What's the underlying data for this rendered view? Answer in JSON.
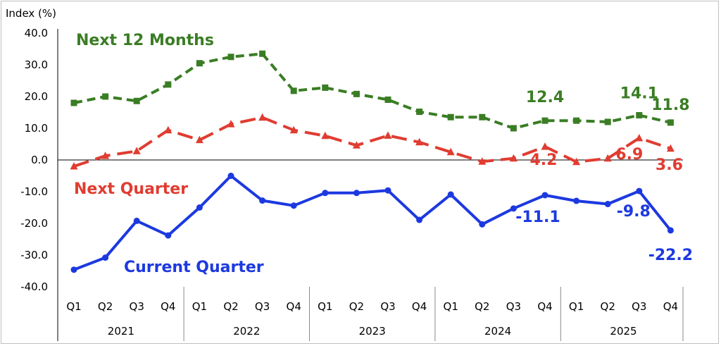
{
  "chart_data": {
    "type": "line",
    "ylabel": "Index (%)",
    "ylim": [
      -40,
      40
    ],
    "yticks": [
      "40.0",
      "30.0",
      "20.0",
      "10.0",
      "0.0",
      "-10.0",
      "-20.0",
      "-30.0",
      "-40.0"
    ],
    "quarters": [
      "Q1",
      "Q2",
      "Q3",
      "Q4",
      "Q1",
      "Q2",
      "Q3",
      "Q4",
      "Q1",
      "Q2",
      "Q3",
      "Q4",
      "Q1",
      "Q2",
      "Q3",
      "Q4",
      "Q1",
      "Q2",
      "Q3",
      "Q4"
    ],
    "years": [
      "2021",
      "2022",
      "2023",
      "2024",
      "2025"
    ],
    "grid": false,
    "series": [
      {
        "name": "Next 12 Months",
        "color": "#3a7d24",
        "style": "dashed",
        "marker": "square",
        "values": [
          18.0,
          20.0,
          18.6,
          23.8,
          30.5,
          32.5,
          33.5,
          21.8,
          22.8,
          20.8,
          19.0,
          15.2,
          13.5,
          13.5,
          10.0,
          12.4,
          12.4,
          12.0,
          14.1,
          11.8
        ],
        "labels": [
          {
            "index": 15,
            "text": "12.4"
          },
          {
            "index": 18,
            "text": "14.1"
          },
          {
            "index": 19,
            "text": "11.8"
          }
        ]
      },
      {
        "name": "Next Quarter",
        "color": "#e03c31",
        "style": "dashed",
        "marker": "triangle",
        "values": [
          -2.0,
          1.3,
          2.8,
          9.4,
          6.3,
          11.3,
          13.4,
          9.4,
          7.6,
          4.6,
          7.7,
          5.6,
          2.5,
          -0.5,
          0.5,
          4.2,
          -0.6,
          0.5,
          6.9,
          3.6
        ],
        "labels": [
          {
            "index": 15,
            "text": "4.2"
          },
          {
            "index": 18,
            "text": "6.9"
          },
          {
            "index": 19,
            "text": "3.6"
          }
        ]
      },
      {
        "name": "Current Quarter",
        "color": "#1c39e0",
        "style": "solid",
        "marker": "circle",
        "values": [
          -34.6,
          -30.8,
          -19.2,
          -23.8,
          -15.0,
          -5.0,
          -12.8,
          -14.4,
          -10.4,
          -10.4,
          -9.6,
          -18.9,
          -10.9,
          -20.3,
          -15.3,
          -11.1,
          -12.9,
          -13.9,
          -9.8,
          -22.2
        ],
        "labels": [
          {
            "index": 15,
            "text": "-11.1"
          },
          {
            "index": 18,
            "text": "-9.8"
          },
          {
            "index": 19,
            "text": "-22.2"
          }
        ]
      }
    ]
  }
}
